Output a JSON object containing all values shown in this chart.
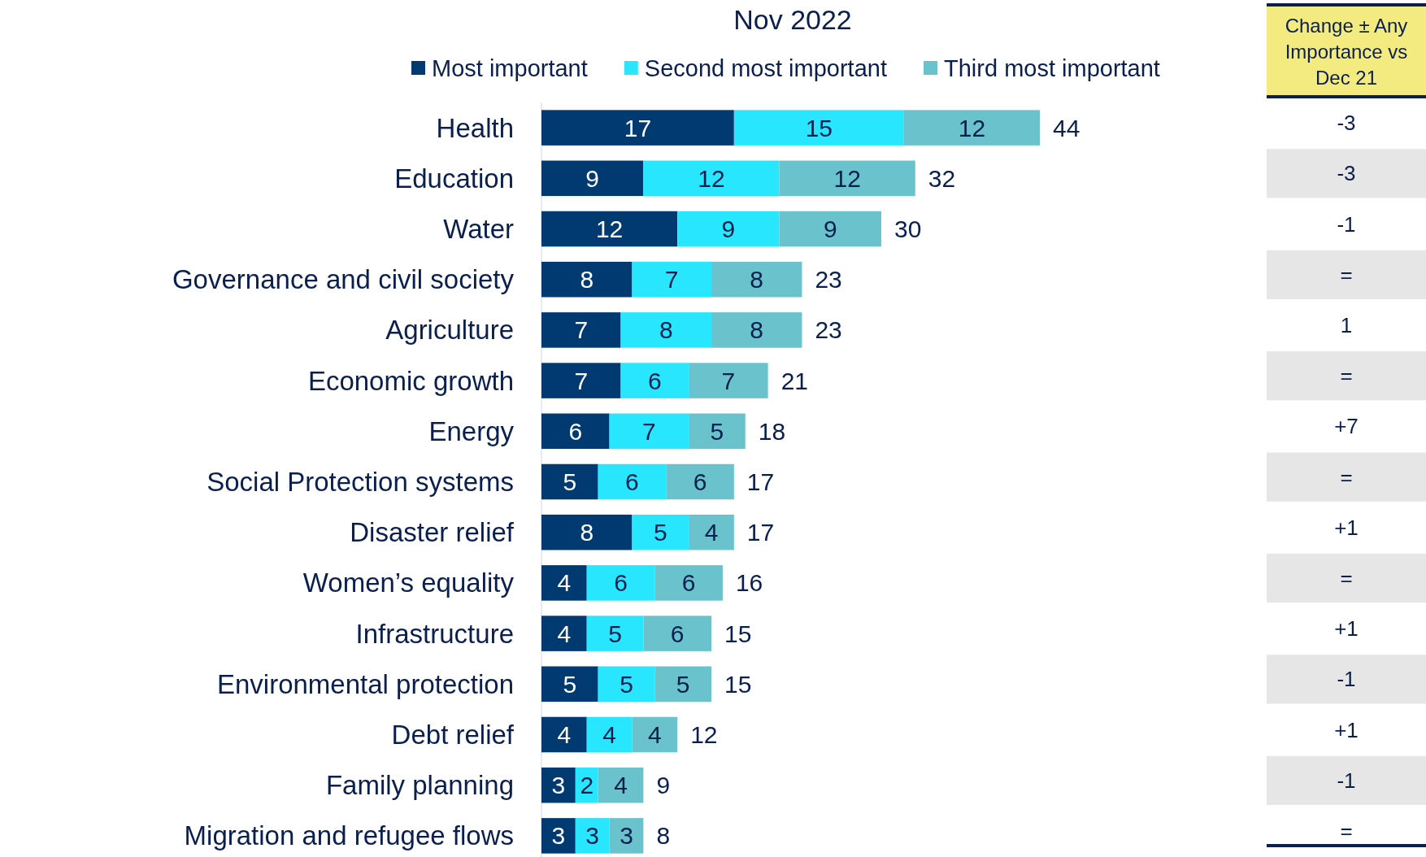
{
  "chart_data": {
    "type": "bar",
    "orientation": "horizontal",
    "stacked": true,
    "data_labels": true,
    "legend": "top",
    "title": "Nov 2022",
    "categories": [
      "Health",
      "Education",
      "Water",
      "Governance and civil society",
      "Agriculture",
      "Economic growth",
      "Energy",
      "Social  Protection systems",
      "Disaster relief",
      "Women’s equality",
      "Infrastructure",
      "Environmental protection",
      "Debt relief",
      "Family planning",
      "Migration and refugee flows"
    ],
    "series": [
      {
        "name": "Most important",
        "color": "#003a70",
        "values": [
          17,
          9,
          12,
          8,
          7,
          7,
          6,
          5,
          8,
          4,
          4,
          5,
          4,
          3,
          3
        ]
      },
      {
        "name": "Second most important",
        "color": "#29e6ff",
        "values": [
          15,
          12,
          9,
          7,
          8,
          6,
          7,
          6,
          5,
          6,
          5,
          5,
          4,
          2,
          3
        ]
      },
      {
        "name": "Third most important",
        "color": "#6ac3cc",
        "values": [
          12,
          12,
          9,
          8,
          8,
          7,
          5,
          6,
          4,
          6,
          6,
          5,
          4,
          4,
          3
        ]
      }
    ],
    "totals": [
      "44",
      "32",
      "30",
      "23",
      "23",
      "21",
      "18",
      "17",
      "17",
      "16",
      "15",
      "15",
      "12",
      "9",
      "8"
    ],
    "annotations": [
      "Change ± Any Importance vs Dec 21",
      "-3",
      "-3",
      "-1",
      "=",
      "1",
      "=",
      "+7",
      "=",
      "+1",
      "=",
      "+1",
      "-1",
      "+1",
      "-1",
      "="
    ]
  }
}
